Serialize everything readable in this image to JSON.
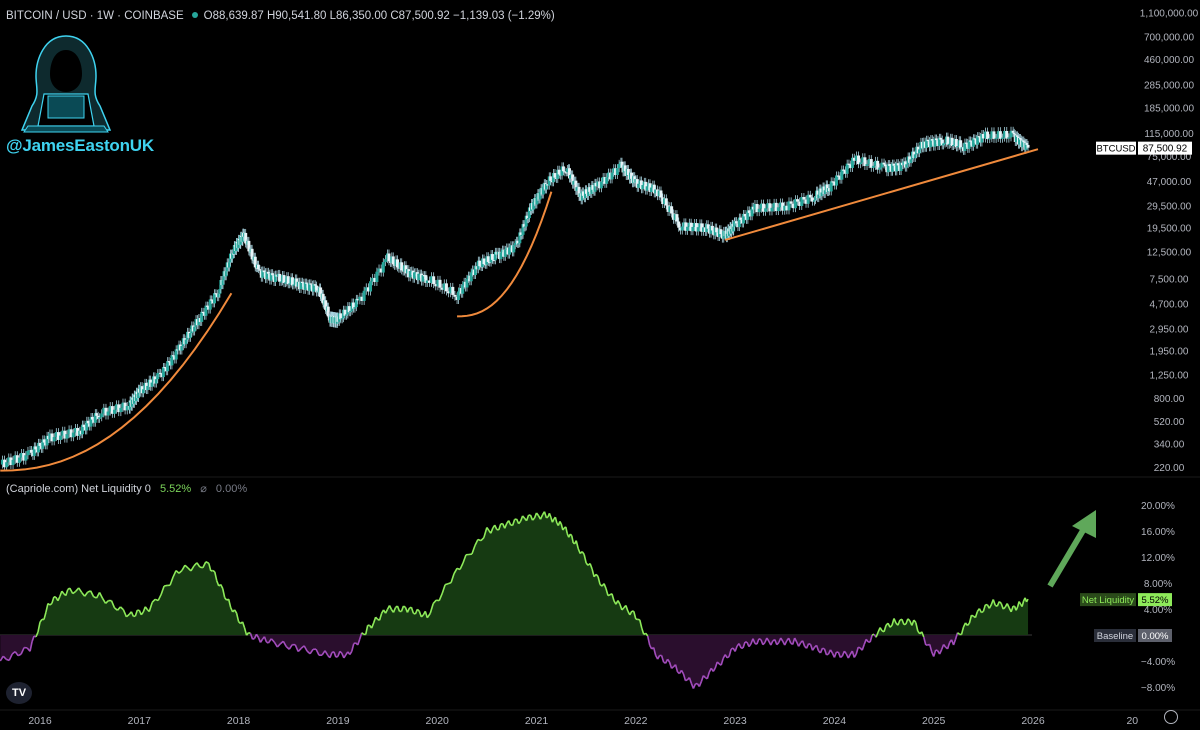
{
  "header": {
    "symbol": "BITCOIN / USD · 1W · COINBASE",
    "ohlc": "O88,639.87 H90,541.80 L86,350.00 C87,500.92 −1,139.03 (−1.29%)"
  },
  "branding": {
    "handle": "@JamesEastonUK",
    "avatar": "hooded-hacker-icon"
  },
  "indicator": {
    "title": "(Capriole.com) Net Liquidity",
    "param": "0",
    "value": "5.52%",
    "baseline_value": "0.00%"
  },
  "logo": "TV",
  "colors": {
    "up": "#26a69a",
    "down": "#ef5350",
    "wick": "#a9d4e0",
    "trend": "#f08a3c",
    "liq_pos_fill": "#163a12",
    "liq_pos_line": "#8eea5a",
    "liq_neg_fill": "#2a0e2d",
    "liq_neg_line": "#a34dbd",
    "arrow": "#5fa85a",
    "price_tag": "#ffffff"
  },
  "chart_data": [
    {
      "type": "line",
      "title": "BITCOIN / USD · 1W · COINBASE",
      "scale": "log",
      "y_ticks": [
        1100000,
        700000,
        460000,
        285000,
        185000,
        115000,
        75000,
        47000,
        29500,
        19500,
        12500,
        7500,
        4700,
        2950,
        1950,
        1250,
        800,
        520,
        340,
        220
      ],
      "y_tick_labels": [
        "1,100,000.00",
        "700,000.00",
        "460,000.00",
        "285,000.00",
        "185,000.00",
        "115,000.00",
        "75,000.00",
        "47,000.00",
        "29,500.00",
        "19,500.00",
        "12,500.00",
        "7,500.00",
        "4,700.00",
        "2,950.00",
        "1,950.00",
        "1,250.00",
        "800.00",
        "520.00",
        "340.00",
        "220.00"
      ],
      "x": [
        2015.6,
        2015.9,
        2016.1,
        2016.4,
        2016.6,
        2016.9,
        2017.0,
        2017.2,
        2017.4,
        2017.6,
        2017.8,
        2017.95,
        2018.05,
        2018.2,
        2018.4,
        2018.6,
        2018.8,
        2018.92,
        2019.0,
        2019.2,
        2019.5,
        2019.7,
        2019.9,
        2020.2,
        2020.4,
        2020.6,
        2020.8,
        2020.95,
        2021.1,
        2021.3,
        2021.45,
        2021.6,
        2021.85,
        2022.0,
        2022.2,
        2022.45,
        2022.7,
        2022.9,
        2023.0,
        2023.2,
        2023.5,
        2023.8,
        2023.95,
        2024.2,
        2024.5,
        2024.7,
        2024.9,
        2025.1,
        2025.3,
        2025.5,
        2025.8,
        2025.95
      ],
      "series": [
        {
          "name": "BTCUSD",
          "values": [
            230,
            280,
            380,
            430,
            600,
            700,
            900,
            1200,
            2000,
            3500,
            6000,
            13000,
            17000,
            8500,
            7500,
            6800,
            6300,
            3600,
            3500,
            4800,
            11000,
            8500,
            7500,
            5500,
            9500,
            11500,
            14000,
            29000,
            45000,
            60000,
            35000,
            42000,
            62000,
            45000,
            40000,
            20000,
            19500,
            16800,
            20500,
            28000,
            29000,
            35000,
            42000,
            70000,
            60000,
            62000,
            95000,
            100000,
            90000,
            108000,
            110000,
            87500
          ]
        }
      ],
      "last_label": "BTCUSD",
      "last_value": "87,500.92",
      "trendlines": 3
    },
    {
      "type": "area",
      "title": "(Capriole.com) Net Liquidity",
      "ylim": [
        -10,
        22
      ],
      "y_ticks": [
        20,
        16,
        12,
        8,
        4,
        0,
        -4,
        -8
      ],
      "y_tick_labels": [
        "20.00%",
        "16.00%",
        "12.00%",
        "8.00%",
        "4.00%",
        "",
        "−4.00%",
        "−8.00%"
      ],
      "x": [
        2015.6,
        2015.9,
        2016.1,
        2016.3,
        2016.6,
        2016.9,
        2017.1,
        2017.4,
        2017.7,
        2017.9,
        2018.1,
        2018.3,
        2018.6,
        2018.9,
        2019.1,
        2019.3,
        2019.5,
        2019.7,
        2019.9,
        2020.2,
        2020.5,
        2020.7,
        2020.9,
        2021.1,
        2021.25,
        2021.4,
        2021.6,
        2021.8,
        2022.0,
        2022.2,
        2022.4,
        2022.6,
        2022.8,
        2023.0,
        2023.2,
        2023.4,
        2023.6,
        2023.8,
        2024.0,
        2024.2,
        2024.4,
        2024.6,
        2024.8,
        2025.0,
        2025.2,
        2025.4,
        2025.6,
        2025.8,
        2025.95
      ],
      "series": [
        {
          "name": "Net Liquidity",
          "values": [
            -4,
            -2,
            5,
            7,
            6,
            3,
            4,
            10,
            11,
            5,
            0,
            -1,
            -2,
            -3,
            -3,
            1,
            4,
            4,
            3,
            10,
            16,
            17,
            18,
            18.5,
            17,
            14,
            9,
            5,
            3,
            -3,
            -5,
            -8,
            -5,
            -2,
            -1,
            -1,
            -1,
            -2,
            -3,
            -3,
            0,
            2,
            2,
            -3,
            -1,
            3,
            5,
            4,
            5.52
          ]
        }
      ],
      "legend": [
        {
          "label": "Net Liquidity",
          "value": "5.52%"
        },
        {
          "label": "Baseline",
          "value": "0.00%"
        }
      ]
    }
  ],
  "x_axis": {
    "labels": [
      "2016",
      "2017",
      "2018",
      "2019",
      "2020",
      "2021",
      "2022",
      "2023",
      "2024",
      "2025",
      "2026",
      "20"
    ]
  }
}
